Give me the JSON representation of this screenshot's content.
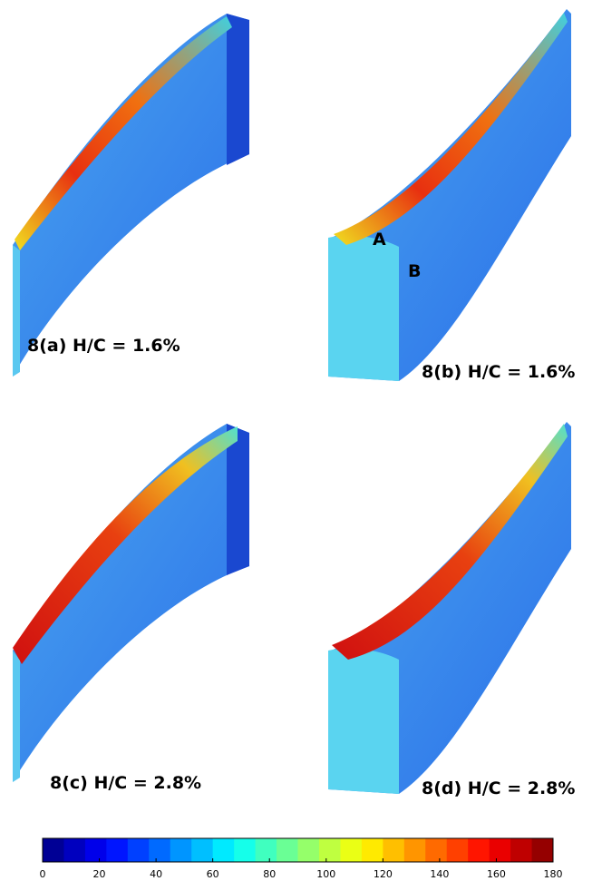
{
  "panels": [
    {
      "label": "8(a) H/C = 1.6%"
    },
    {
      "label": "8(b) H/C = 1.6%"
    },
    {
      "label": "8(c) H/C = 2.8%"
    },
    {
      "label": "8(d) H/C = 2.8%"
    }
  ],
  "annotations": [
    "A",
    "B"
  ],
  "colorbar": {
    "lim": [
      0,
      180
    ],
    "ticks": [
      0,
      20,
      40,
      60,
      80,
      100,
      120,
      140,
      160,
      180
    ]
  }
}
